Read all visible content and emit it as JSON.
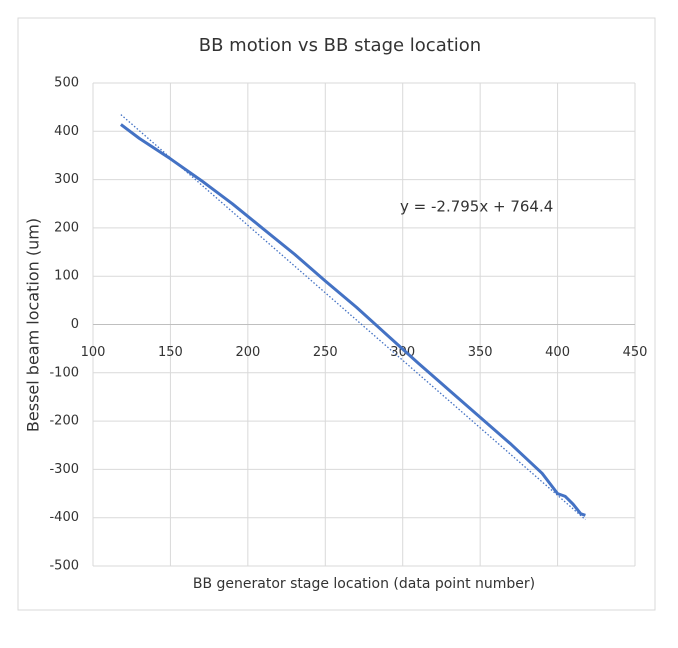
{
  "chart_data": {
    "type": "line",
    "title": "BB motion vs BB stage location",
    "x_label": "BB generator stage location (data point number)",
    "y_label": "Bessel beam location (um)",
    "annotation": "y = -2.795x + 764.4",
    "series": [
      {
        "color": "#4472c4",
        "x": [
          118,
          130,
          150,
          170,
          190,
          210,
          230,
          250,
          270,
          290,
          310,
          330,
          350,
          370,
          390,
          400,
          405,
          410,
          415,
          418
        ],
        "values": [
          414,
          385,
          343,
          298,
          250,
          198,
          146,
          90,
          36,
          -22,
          -80,
          -136,
          -192,
          -248,
          -308,
          -350,
          -356,
          -372,
          -392,
          -395
        ]
      }
    ],
    "trendline": {
      "color": "#4472c4",
      "x": [
        118,
        418
      ],
      "values": [
        434.6,
        -403.9
      ]
    },
    "xlim": [
      100,
      450
    ],
    "xticks": [
      100,
      150,
      200,
      250,
      300,
      350,
      400,
      450
    ],
    "ylim": [
      -500,
      500
    ],
    "yticks": [
      -500,
      -400,
      -300,
      -200,
      -100,
      0,
      100,
      200,
      300,
      400,
      500
    ],
    "grid": true
  }
}
